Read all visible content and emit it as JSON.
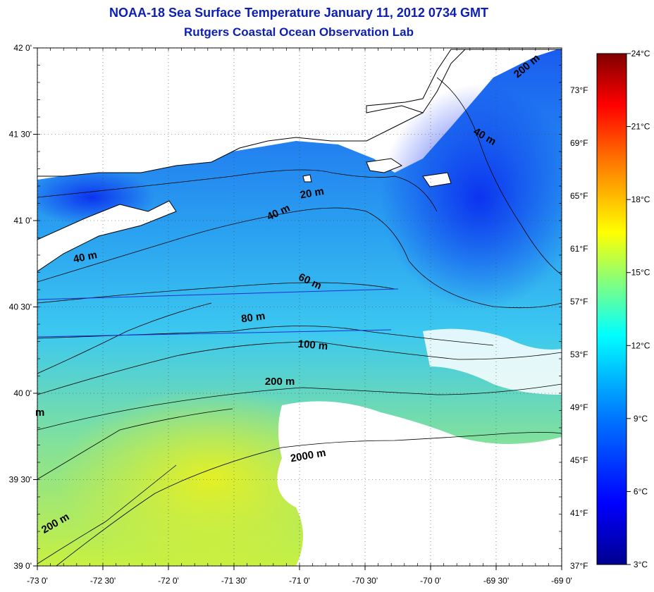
{
  "title": "NOAA-18 Sea Surface Temperature January 11, 2012 0734 GMT",
  "subtitle": "Rutgers Coastal Ocean Observation Lab",
  "map": {
    "lon_range": [
      -73,
      -69
    ],
    "lat_range": [
      39,
      42
    ],
    "lat_ticks": [
      {
        "value": 42.0,
        "label": "42 0'"
      },
      {
        "value": 41.5,
        "label": "41 30'"
      },
      {
        "value": 41.0,
        "label": "41 0'"
      },
      {
        "value": 40.5,
        "label": "40 30'"
      },
      {
        "value": 40.0,
        "label": "40 0'"
      },
      {
        "value": 39.5,
        "label": "39 30'"
      },
      {
        "value": 39.0,
        "label": "39 0'"
      }
    ],
    "lon_ticks": [
      {
        "value": -73.0,
        "label": "-73 0'"
      },
      {
        "value": -72.5,
        "label": "-72 30'"
      },
      {
        "value": -72.0,
        "label": "-72 0'"
      },
      {
        "value": -71.5,
        "label": "-71 30'"
      },
      {
        "value": -71.0,
        "label": "-71 0'"
      },
      {
        "value": -70.5,
        "label": "-70 30'"
      },
      {
        "value": -70.0,
        "label": "-70 0'"
      },
      {
        "value": -69.5,
        "label": "-69 30'"
      },
      {
        "value": -69.0,
        "label": "-69 0'"
      }
    ],
    "fahrenheit_ticks": [
      {
        "value": 73,
        "label": "73°F"
      },
      {
        "value": 69,
        "label": "69°F"
      },
      {
        "value": 65,
        "label": "65°F"
      },
      {
        "value": 61,
        "label": "61°F"
      },
      {
        "value": 57,
        "label": "57°F"
      },
      {
        "value": 53,
        "label": "53°F"
      },
      {
        "value": 49,
        "label": "49°F"
      },
      {
        "value": 45,
        "label": "45°F"
      },
      {
        "value": 41,
        "label": "41°F"
      },
      {
        "value": 37,
        "label": "37°F"
      }
    ],
    "depth_labels": [
      {
        "text": "200 m",
        "lon": -69.25,
        "lat": 41.88,
        "rotate": -40
      },
      {
        "text": "40 m",
        "lon": -69.6,
        "lat": 41.47,
        "rotate": 30
      },
      {
        "text": "20 m",
        "lon": -70.9,
        "lat": 41.14,
        "rotate": -10
      },
      {
        "text": "40 m",
        "lon": -71.15,
        "lat": 41.03,
        "rotate": -25
      },
      {
        "text": "40 m",
        "lon": -72.63,
        "lat": 40.77,
        "rotate": -12
      },
      {
        "text": "60 m",
        "lon": -70.93,
        "lat": 40.63,
        "rotate": 25
      },
      {
        "text": "80 m",
        "lon": -71.35,
        "lat": 40.42,
        "rotate": -8
      },
      {
        "text": "100 m",
        "lon": -70.9,
        "lat": 40.26,
        "rotate": 5
      },
      {
        "text": "200 m",
        "lon": -71.15,
        "lat": 40.05,
        "rotate": 0
      },
      {
        "text": "2000 m",
        "lon": -70.93,
        "lat": 39.62,
        "rotate": -10
      },
      {
        "text": "200 m",
        "lon": -72.85,
        "lat": 39.23,
        "rotate": -30
      },
      {
        "text": "m",
        "lon": -72.98,
        "lat": 39.87,
        "rotate": 0
      }
    ]
  },
  "colorbar": {
    "celsius_ticks": [
      {
        "value": 24,
        "label": "24°C"
      },
      {
        "value": 21,
        "label": "21°C"
      },
      {
        "value": 18,
        "label": "18°C"
      },
      {
        "value": 15,
        "label": "15°C"
      },
      {
        "value": 12,
        "label": "12°C"
      },
      {
        "value": 9,
        "label": "9°C"
      },
      {
        "value": 6,
        "label": "6°C"
      },
      {
        "value": 3,
        "label": "3°C"
      }
    ],
    "range_c": [
      3,
      24
    ],
    "colors": [
      "#00008f",
      "#0000ff",
      "#0080ff",
      "#00ffff",
      "#80ff80",
      "#ffff00",
      "#ff8000",
      "#ff0000",
      "#800000"
    ]
  }
}
